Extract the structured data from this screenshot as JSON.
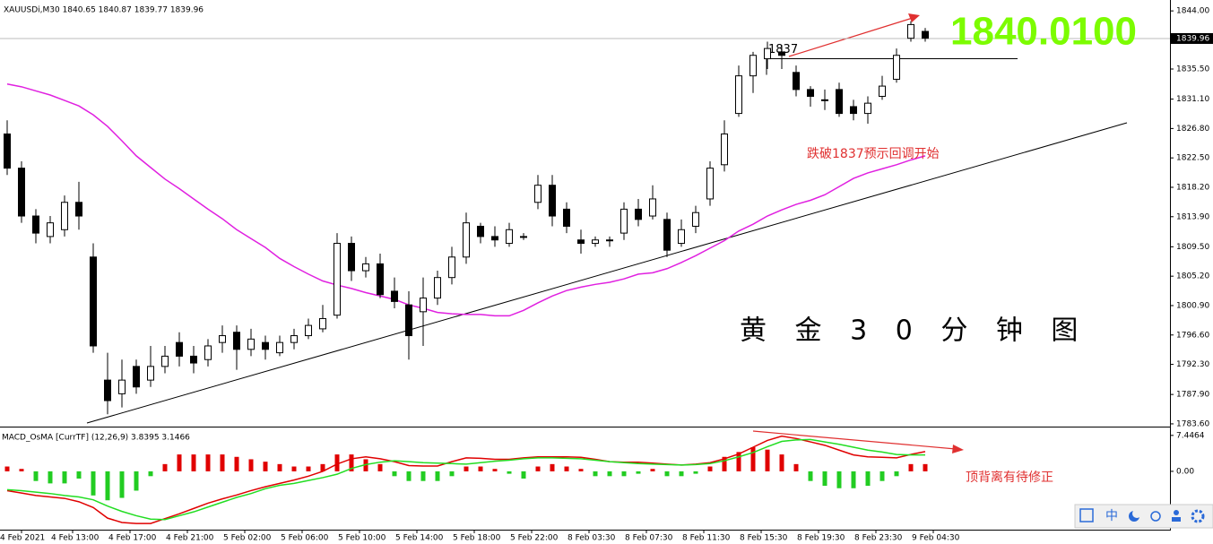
{
  "chart_data": [
    {
      "type": "candlestick",
      "title": "XAUUSDi,M30  1840.65 1840.87 1839.77 1839.96",
      "open": [
        1826,
        1821,
        1814,
        1811,
        1812,
        1816,
        1808,
        1790,
        1788,
        1792,
        1790,
        1792,
        1795.5,
        1793.5,
        1793,
        1795.5,
        1797,
        1794.5,
        1795.5,
        1794,
        1795.5,
        1796.5,
        1797.5,
        1799.5,
        1810,
        1806,
        1807,
        1803,
        1801,
        1800,
        1802,
        1805,
        1808,
        1812.5,
        1811,
        1810,
        1811,
        1816,
        1818.5,
        1815,
        1810.5,
        1810,
        1810.5,
        1811.5,
        1815,
        1814,
        1813.5,
        1810,
        1812.5,
        1816.5,
        1821.5,
        1829,
        1834.5,
        1837,
        1838,
        1835,
        1832.5,
        1831,
        1832.5,
        1830,
        1829,
        1831.5,
        1834,
        1840,
        1841
      ],
      "high": [
        1828,
        1822,
        1815,
        1814,
        1817,
        1819,
        1810,
        1794,
        1793,
        1793,
        1795,
        1795,
        1797,
        1795,
        1796,
        1798,
        1798,
        1797.5,
        1796.5,
        1796.5,
        1797.5,
        1799,
        1801,
        1811.5,
        1811,
        1808,
        1808.5,
        1805,
        1803,
        1805,
        1806,
        1809.5,
        1814.5,
        1813,
        1812.5,
        1813,
        1811.5,
        1820,
        1820,
        1816,
        1812,
        1811,
        1811,
        1816,
        1816.5,
        1818.5,
        1814.5,
        1813.5,
        1815.5,
        1822,
        1828,
        1836,
        1838,
        1839.5,
        1839,
        1836,
        1833,
        1832.5,
        1833.5,
        1831,
        1831.5,
        1834.5,
        1838.5,
        1842.5,
        1841.5
      ],
      "low": [
        1820,
        1813,
        1810,
        1810,
        1811,
        1812,
        1794,
        1785,
        1786,
        1788,
        1789,
        1791,
        1792,
        1791,
        1792,
        1794,
        1791.5,
        1793.5,
        1793,
        1793.5,
        1794.5,
        1796,
        1797,
        1799,
        1804.5,
        1805,
        1802,
        1800.5,
        1793,
        1795,
        1801,
        1804,
        1807,
        1810,
        1809.5,
        1809.5,
        1810.5,
        1815,
        1812.5,
        1811.5,
        1808.5,
        1809.5,
        1809.5,
        1810.5,
        1812.5,
        1813.5,
        1808,
        1809.5,
        1811.5,
        1815.5,
        1820.5,
        1828.5,
        1832,
        1835.5,
        1835.5,
        1831.5,
        1830,
        1829.5,
        1828.5,
        1828,
        1827.5,
        1831,
        1833.5,
        1839.5,
        1839.5
      ],
      "close": [
        1821,
        1814,
        1811.5,
        1813,
        1816,
        1814,
        1795,
        1787,
        1790,
        1789,
        1792,
        1793.5,
        1793.5,
        1792.5,
        1795,
        1796.5,
        1794.5,
        1796,
        1794.5,
        1795.5,
        1796.5,
        1798,
        1799,
        1810,
        1806,
        1807,
        1802.5,
        1801.5,
        1796.5,
        1802,
        1805,
        1808,
        1813,
        1811,
        1810.5,
        1812,
        1811,
        1818.5,
        1814,
        1812.5,
        1810,
        1810.5,
        1810.5,
        1815,
        1813.5,
        1816.5,
        1809,
        1812,
        1814.5,
        1821,
        1826,
        1834.5,
        1837.5,
        1838.5,
        1837.5,
        1832.5,
        1831.5,
        1831,
        1829,
        1829,
        1830.5,
        1833,
        1837.5,
        1842,
        1840
      ],
      "ma": [
        1833.3,
        1832.9,
        1832.3,
        1831.7,
        1830.9,
        1830.1,
        1828.8,
        1827.1,
        1825.0,
        1822.8,
        1821.1,
        1819.4,
        1818.0,
        1816.5,
        1815.0,
        1813.6,
        1812.0,
        1810.7,
        1809.4,
        1807.8,
        1806.6,
        1805.5,
        1804.5,
        1803.9,
        1803.4,
        1802.8,
        1802.3,
        1801.8,
        1801.0,
        1800.5,
        1799.9,
        1799.7,
        1799.6,
        1799.6,
        1799.4,
        1799.4,
        1800.2,
        1801.3,
        1802.3,
        1803.1,
        1803.6,
        1804.0,
        1804.3,
        1804.8,
        1805.5,
        1805.7,
        1806.3,
        1807.2,
        1808.2,
        1809.3,
        1810.4,
        1811.8,
        1812.8,
        1814.0,
        1814.9,
        1815.7,
        1816.3,
        1817.1,
        1818.3,
        1819.5,
        1820.3,
        1820.9,
        1821.5,
        1822.2,
        1822.8
      ],
      "ma_color": "#e020e0",
      "ylim": [
        1783.2,
        1845.2
      ],
      "yticks": [
        {
          "value": 1844,
          "label": "1844.00"
        },
        {
          "value": 1835.5,
          "label": "1835.50"
        },
        {
          "value": 1831.1,
          "label": "1831.10"
        },
        {
          "value": 1826.8,
          "label": "1826.80"
        },
        {
          "value": 1822.5,
          "label": "1822.50"
        },
        {
          "value": 1818.2,
          "label": "1818.20"
        },
        {
          "value": 1813.9,
          "label": "1813.90"
        },
        {
          "value": 1809.5,
          "label": "1809.50"
        },
        {
          "value": 1805.2,
          "label": "1805.20"
        },
        {
          "value": 1800.9,
          "label": "1800.90"
        },
        {
          "value": 1796.6,
          "label": "1796.60"
        },
        {
          "value": 1792.3,
          "label": "1792.30"
        },
        {
          "value": 1787.9,
          "label": "1787.90"
        },
        {
          "value": 1783.6,
          "label": "1783.60"
        }
      ],
      "last_price": 1839.96,
      "level": 1837,
      "x_labels": [
        "4 Feb 2021",
        "4 Feb 13:00",
        "4 Feb 17:00",
        "4 Feb 21:00",
        "5 Feb 02:00",
        "5 Feb 06:00",
        "5 Feb 10:00",
        "5 Feb 14:00",
        "5 Feb 18:00",
        "5 Feb 22:00",
        "8 Feb 03:30",
        "8 Feb 07:30",
        "8 Feb 11:30",
        "8 Feb 15:30",
        "8 Feb 19:30",
        "8 Feb 23:30",
        "9 Feb 04:30"
      ],
      "big_price": "1840.0100",
      "note": "跌破1837预示回调开始",
      "caption": "黄 金 3 0 分 钟 图"
    },
    {
      "type": "macd",
      "title": "MACD_OsMA [CurrTF] (12,26,9) 3.8395 3.1466",
      "histogram": [
        1,
        0.5,
        -2,
        -2.5,
        -2.5,
        -1.5,
        -5,
        -6,
        -5.5,
        -4,
        -1,
        1.5,
        3.5,
        3.5,
        3.5,
        3.5,
        3,
        2.5,
        2,
        1.5,
        1,
        1,
        1.5,
        3.5,
        3.5,
        2.5,
        1.5,
        -1,
        -2,
        -2,
        -2,
        -1,
        1,
        1,
        0.5,
        -0.5,
        -1.5,
        1,
        1.5,
        1,
        0.5,
        -1,
        -1,
        -1,
        -0.5,
        0.5,
        -1,
        -1,
        -0.5,
        1,
        3,
        4,
        5,
        4.5,
        3.5,
        1.5,
        -2,
        -3,
        -3.5,
        -3.5,
        -3,
        -2,
        -1,
        1.5,
        1.5
      ],
      "series": [
        {
          "color": "#e00000",
          "values": [
            -4.0,
            -4.5,
            -5.0,
            -5.3,
            -5.6,
            -6.3,
            -7.5,
            -9.7,
            -10.6,
            -10.8,
            -10.8,
            -9.8,
            -8.8,
            -7.7,
            -6.6,
            -5.7,
            -4.9,
            -4.0,
            -3.2,
            -2.5,
            -1.8,
            -1.0,
            0.0,
            1.5,
            2.6,
            3.0,
            2.6,
            2.0,
            1.2,
            1.1,
            1.1,
            2.0,
            2.8,
            2.7,
            2.5,
            2.5,
            2.8,
            3.0,
            3.0,
            3.0,
            2.9,
            2.5,
            2.0,
            1.9,
            1.9,
            1.7,
            1.5,
            1.3,
            1.5,
            1.8,
            2.6,
            3.6,
            5.0,
            6.4,
            7.3,
            6.8,
            6.1,
            5.4,
            4.4,
            3.4,
            3.0,
            2.9,
            2.8,
            3.5,
            4.1
          ]
        },
        {
          "color": "#22dd22",
          "values": [
            -3.8,
            -4.0,
            -4.3,
            -4.6,
            -5.0,
            -5.3,
            -5.9,
            -7.2,
            -8.3,
            -9.2,
            -9.9,
            -10.0,
            -9.2,
            -8.4,
            -7.4,
            -6.4,
            -5.4,
            -4.6,
            -3.6,
            -2.9,
            -2.5,
            -1.9,
            -1.3,
            -0.6,
            0.6,
            1.4,
            1.9,
            2.2,
            2.0,
            1.8,
            1.7,
            1.6,
            1.5,
            1.8,
            2.1,
            2.3,
            2.6,
            2.8,
            2.8,
            2.7,
            2.6,
            2.3,
            2.0,
            1.8,
            1.6,
            1.5,
            1.4,
            1.3,
            1.4,
            1.6,
            2.2,
            3.0,
            3.9,
            5.1,
            6.2,
            6.5,
            6.6,
            6.1,
            5.6,
            5.0,
            4.4,
            4.0,
            3.5,
            3.4,
            3.4
          ]
        }
      ],
      "ylim": [
        -11.9,
        8.9
      ],
      "yticks": [
        7.4464,
        {
          "value": 0,
          "label": "0.00"
        }
      ],
      "note": "顶背离有待修正"
    }
  ],
  "toolbar": {
    "ime": "中"
  }
}
